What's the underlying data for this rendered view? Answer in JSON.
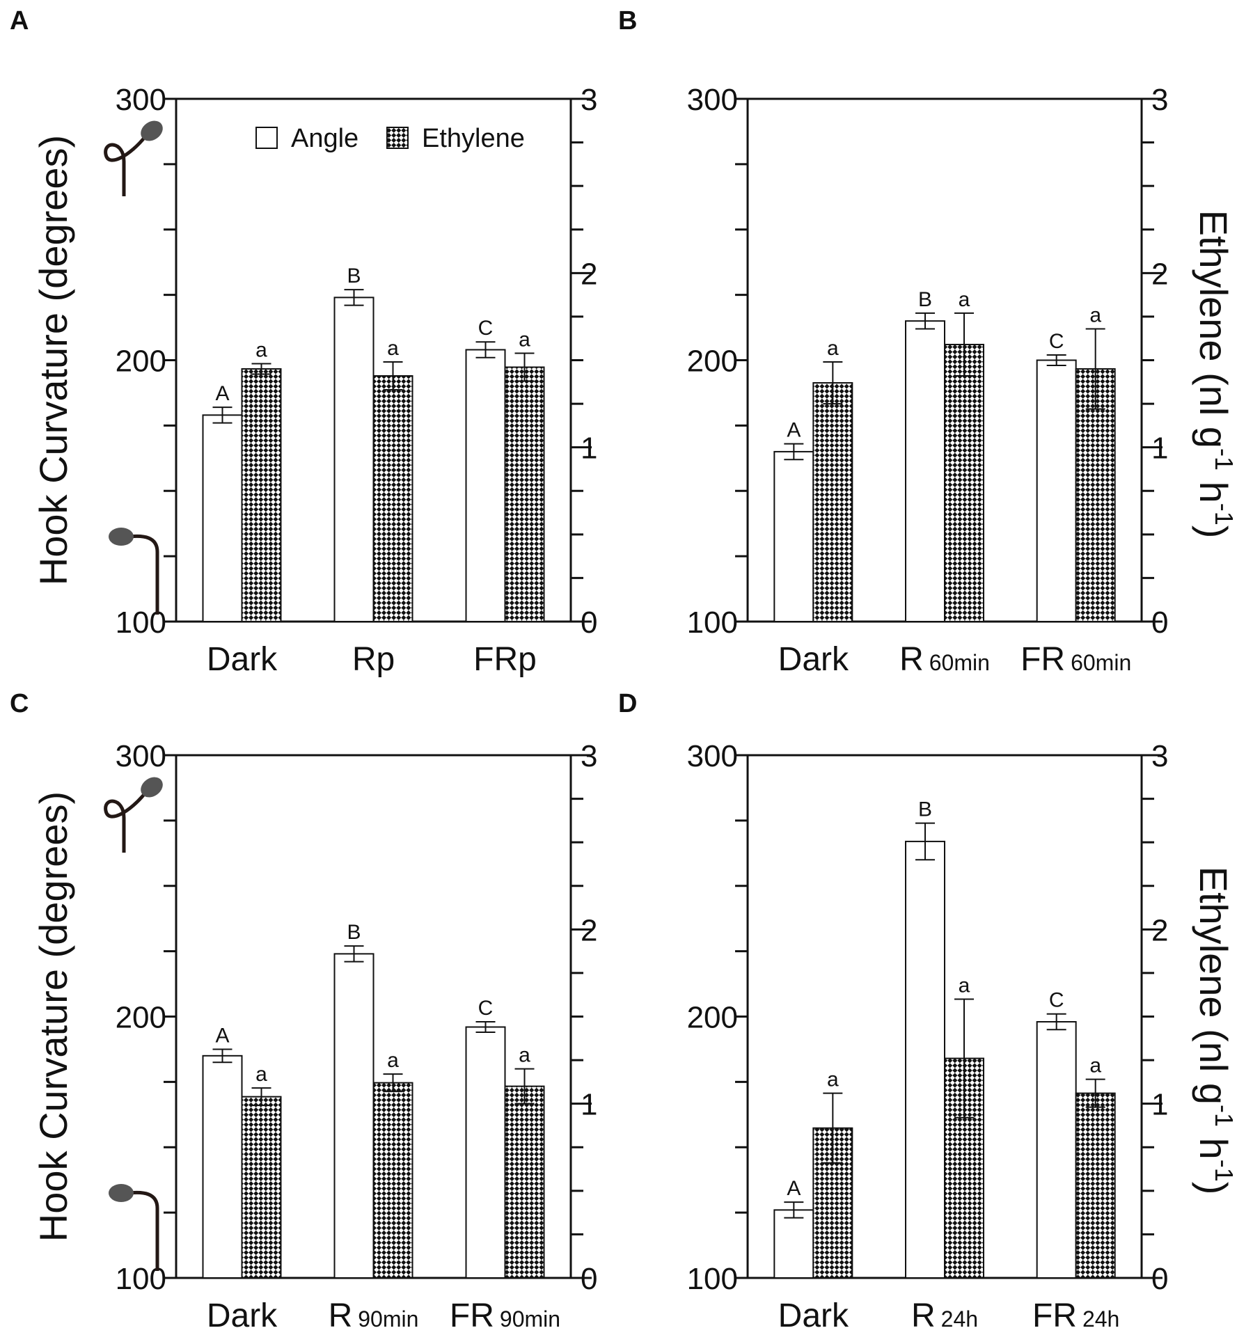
{
  "chart_data": [
    {
      "panel": "A",
      "type": "bar",
      "categories": [
        {
          "main": "Dark",
          "sub": ""
        },
        {
          "main": "Rp",
          "sub": ""
        },
        {
          "main": "FRp",
          "sub": ""
        }
      ],
      "series": [
        {
          "name": "Angle",
          "axis": "left",
          "values": [
            179,
            224,
            204
          ],
          "errors": [
            3,
            3,
            3
          ],
          "letters": [
            "A",
            "B",
            "C"
          ]
        },
        {
          "name": "Ethylene",
          "axis": "right",
          "values": [
            1.45,
            1.41,
            1.46
          ],
          "errors": [
            0.03,
            0.08,
            0.08
          ],
          "letters": [
            "a",
            "a",
            "a"
          ]
        }
      ],
      "ylabel": "Hook  Curvature (degrees)",
      "y2label": "Ethylene (nl g-1 h-1)",
      "ylim": [
        100,
        300
      ],
      "y2lim": [
        0,
        3
      ],
      "yticks": [
        "300",
        "200",
        "100"
      ],
      "y2ticks": [
        "3",
        "2",
        "1",
        "0"
      ],
      "legend": {
        "position": "top-right",
        "items": [
          "Angle",
          "Ethylene"
        ]
      },
      "show_left_title": true,
      "show_right_title": false,
      "hook_icons": true
    },
    {
      "panel": "B",
      "type": "bar",
      "categories": [
        {
          "main": "Dark",
          "sub": ""
        },
        {
          "main": "R",
          "sub": "60min"
        },
        {
          "main": "FR",
          "sub": "60min"
        }
      ],
      "series": [
        {
          "name": "Angle",
          "axis": "left",
          "values": [
            165,
            215,
            200
          ],
          "errors": [
            3,
            3,
            2
          ],
          "letters": [
            "A",
            "B",
            "C"
          ]
        },
        {
          "name": "Ethylene",
          "axis": "right",
          "values": [
            1.37,
            1.59,
            1.45
          ],
          "errors": [
            0.12,
            0.18,
            0.23
          ],
          "letters": [
            "a",
            "a",
            "a"
          ]
        }
      ],
      "ylabel": "Hook  Curvature (degrees)",
      "y2label": "Ethylene (nl g-1 h-1)",
      "ylim": [
        100,
        300
      ],
      "y2lim": [
        0,
        3
      ],
      "yticks": [
        "300",
        "200",
        "100"
      ],
      "y2ticks": [
        "3",
        "2",
        "1",
        "0"
      ],
      "legend": null,
      "show_left_title": false,
      "show_right_title": true,
      "hook_icons": false
    },
    {
      "panel": "C",
      "type": "bar",
      "categories": [
        {
          "main": "Dark",
          "sub": ""
        },
        {
          "main": "R",
          "sub": "90min"
        },
        {
          "main": "FR",
          "sub": "90min"
        }
      ],
      "series": [
        {
          "name": "Angle",
          "axis": "left",
          "values": [
            185,
            224,
            196
          ],
          "errors": [
            2.5,
            3,
            2
          ],
          "letters": [
            "A",
            "B",
            "C"
          ]
        },
        {
          "name": "Ethylene",
          "axis": "right",
          "values": [
            1.04,
            1.12,
            1.1
          ],
          "errors": [
            0.05,
            0.05,
            0.1
          ],
          "letters": [
            "a",
            "a",
            "a"
          ]
        }
      ],
      "ylabel": "Hook  Curvature (degrees)",
      "y2label": "Ethylene (nl g-1 h-1)",
      "ylim": [
        100,
        300
      ],
      "y2lim": [
        0,
        3
      ],
      "yticks": [
        "300",
        "200",
        "100"
      ],
      "y2ticks": [
        "3",
        "2",
        "1",
        "0"
      ],
      "legend": null,
      "show_left_title": true,
      "show_right_title": false,
      "hook_icons": true
    },
    {
      "panel": "D",
      "type": "bar",
      "categories": [
        {
          "main": "Dark",
          "sub": ""
        },
        {
          "main": "R",
          "sub": "24h"
        },
        {
          "main": "FR",
          "sub": "24h"
        }
      ],
      "series": [
        {
          "name": "Angle",
          "axis": "left",
          "values": [
            126,
            267,
            198
          ],
          "errors": [
            3,
            7,
            3
          ],
          "letters": [
            "A",
            "B",
            "C"
          ]
        },
        {
          "name": "Ethylene",
          "axis": "right",
          "values": [
            0.86,
            1.26,
            1.06
          ],
          "errors": [
            0.2,
            0.34,
            0.08
          ],
          "letters": [
            "a",
            "a",
            "a"
          ]
        }
      ],
      "ylabel": "Hook  Curvature (degrees)",
      "y2label": "Ethylene (nl g-1 h-1)",
      "ylim": [
        100,
        300
      ],
      "y2lim": [
        0,
        3
      ],
      "yticks": [
        "300",
        "200",
        "100"
      ],
      "y2ticks": [
        "3",
        "2",
        "1",
        "0"
      ],
      "legend": null,
      "show_left_title": false,
      "show_right_title": true,
      "hook_icons": false
    }
  ]
}
